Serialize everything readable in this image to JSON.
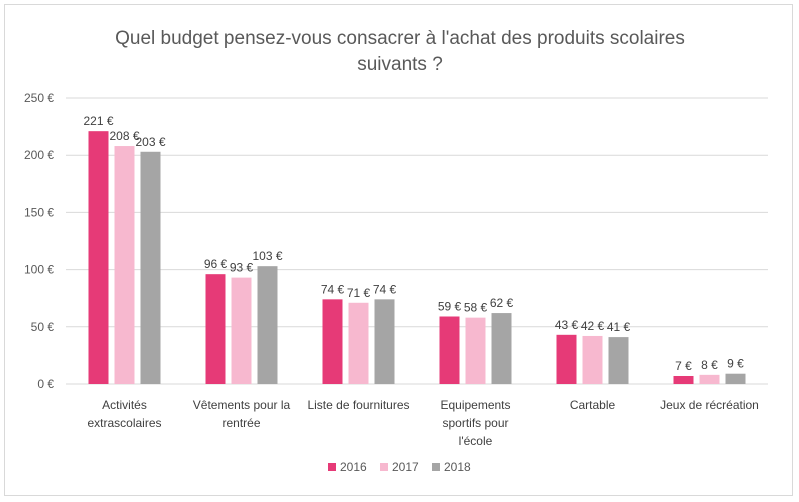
{
  "chart_data": {
    "type": "bar",
    "title": [
      "Quel budget pensez-vous consacrer à l'achat des produits scolaires",
      "suivants ?"
    ],
    "categories": [
      [
        "Activités",
        "extrascolaires"
      ],
      [
        "Vêtements pour la",
        "rentrée"
      ],
      [
        "Liste de fournitures"
      ],
      [
        "Equipements",
        "sportifs pour",
        "l'école"
      ],
      [
        "Cartable"
      ],
      [
        "Jeux de récréation"
      ]
    ],
    "series": [
      {
        "name": "2016",
        "color": "#e63a77",
        "values": [
          221,
          96,
          74,
          59,
          43,
          7
        ],
        "labels": [
          "221 €",
          "96 €",
          "74 €",
          "59 €",
          "43 €",
          "7 €"
        ]
      },
      {
        "name": "2017",
        "color": "#f7b8cf",
        "values": [
          208,
          93,
          71,
          58,
          42,
          8
        ],
        "labels": [
          "208 €",
          "93 €",
          "71 €",
          "58 €",
          "42 €",
          "8 €"
        ]
      },
      {
        "name": "2018",
        "color": "#a5a5a5",
        "values": [
          203,
          103,
          74,
          62,
          41,
          9
        ],
        "labels": [
          "203 €",
          "103 €",
          "74 €",
          "62 €",
          "41 €",
          "9 €"
        ]
      }
    ],
    "ylim": [
      0,
      250
    ],
    "yticks": [
      0,
      50,
      100,
      150,
      200,
      250
    ],
    "ytick_labels": [
      "0 €",
      "50 €",
      "100 €",
      "150 €",
      "200 €",
      "250 €"
    ],
    "grid": true,
    "legend": "bottom",
    "gridline_color": "#d9d9d9"
  }
}
